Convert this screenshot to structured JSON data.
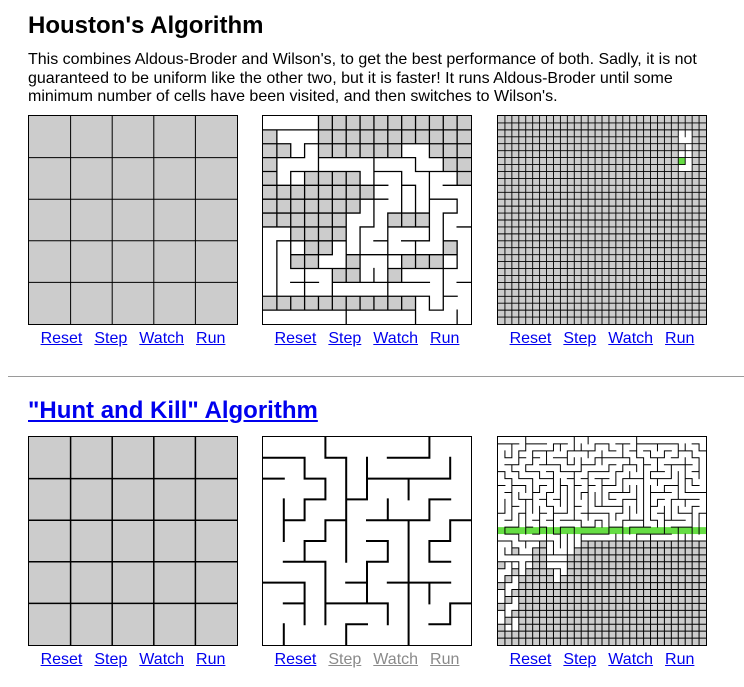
{
  "houston": {
    "title": "Houston's Algorithm",
    "description": "This combines Aldous-Broder and Wilson's, to get the best performance of both. Sadly, it is not guaranteed to be uniform like the other two, but it is faster! It runs Aldous-Broder until some minimum number of cells have been visited, and then switches to Wilson's.",
    "demos": [
      {
        "controls": {
          "reset": "Reset",
          "step": "Step",
          "watch": "Watch",
          "run": "Run"
        }
      },
      {
        "controls": {
          "reset": "Reset",
          "step": "Step",
          "watch": "Watch",
          "run": "Run"
        }
      },
      {
        "controls": {
          "reset": "Reset",
          "step": "Step",
          "watch": "Watch",
          "run": "Run"
        }
      }
    ]
  },
  "hunt_and_kill": {
    "title": "\"Hunt and Kill\" Algorithm",
    "demos": [
      {
        "controls": {
          "reset": "Reset",
          "step": "Step",
          "watch": "Watch",
          "run": "Run"
        }
      },
      {
        "controls": {
          "reset": "Reset",
          "step": "Step",
          "watch": "Watch",
          "run": "Run"
        }
      },
      {
        "controls": {
          "reset": "Reset",
          "step": "Step",
          "watch": "Watch",
          "run": "Run"
        }
      }
    ]
  },
  "colors": {
    "unvisited": "#cccccc",
    "wall": "#000000",
    "passage": "#ffffff",
    "highlight": "#66dd44",
    "link": "#0000ee",
    "disabled": "#8a8a8a"
  }
}
